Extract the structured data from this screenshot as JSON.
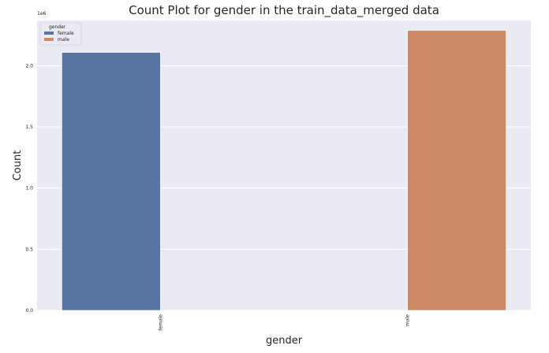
{
  "chart_data": {
    "type": "bar",
    "title": "Count Plot for gender in the train_data_merged data",
    "xlabel": "gender",
    "ylabel": "Count",
    "y_scale_label": "1e6",
    "categories": [
      "female",
      "male"
    ],
    "series": [
      {
        "name": "female",
        "values": [
          2.11,
          0
        ],
        "color": "#5875a4"
      },
      {
        "name": "male",
        "values": [
          0,
          2.29
        ],
        "color": "#cc8963"
      }
    ],
    "ylim": [
      0,
      2.37
    ],
    "yticks": [
      0.0,
      0.5,
      1.0,
      1.5,
      2.0
    ],
    "ytick_labels": [
      "0.0",
      "0.5",
      "1.0",
      "1.5",
      "2.0"
    ],
    "grid": true,
    "legend": {
      "title": "gender",
      "position": "top-left"
    },
    "background": "#eaeaf2"
  }
}
